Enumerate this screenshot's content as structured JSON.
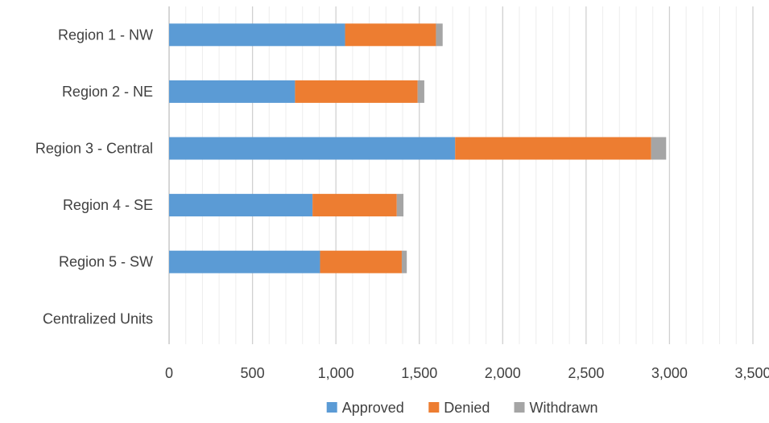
{
  "chart_data": {
    "type": "bar",
    "orientation": "horizontal",
    "stacked": true,
    "categories": [
      "Region 1 - NW",
      "Region 2 - NE",
      "Region 3 - Central",
      "Region 4 - SE",
      "Region 5 - SW",
      "Centralized Units"
    ],
    "series": [
      {
        "name": "Approved",
        "color": "#5B9BD5",
        "values": [
          1055,
          755,
          1715,
          860,
          905,
          0
        ]
      },
      {
        "name": "Denied",
        "color": "#ED7D31",
        "values": [
          545,
          735,
          1175,
          505,
          490,
          0
        ]
      },
      {
        "name": "Withdrawn",
        "color": "#A5A5A5",
        "values": [
          40,
          40,
          90,
          40,
          30,
          0
        ]
      }
    ],
    "xlim": [
      0,
      3500
    ],
    "xticks": [
      0,
      500,
      1000,
      1500,
      2000,
      2500,
      3000,
      3500
    ],
    "xtick_labels": [
      "0",
      "500",
      "1,000",
      "1,500",
      "2,000",
      "2,500",
      "3,000",
      "3,500"
    ],
    "minor_step": 100,
    "grid": true,
    "legend_position": "bottom"
  }
}
